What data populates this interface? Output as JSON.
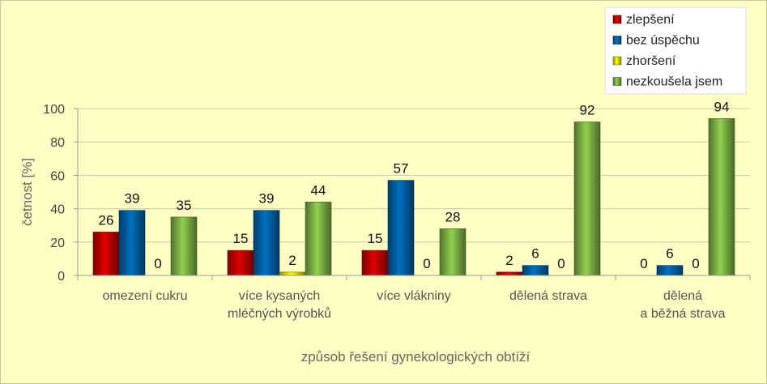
{
  "chart_data": {
    "type": "bar",
    "categories": [
      [
        "omezení cukru"
      ],
      [
        "více kysaných",
        "mléčných výrobků"
      ],
      [
        "více vlákniny"
      ],
      [
        "dělená strava"
      ],
      [
        "dělená",
        "a běžná strava"
      ]
    ],
    "series": [
      {
        "name": "zlepšení",
        "values": [
          26,
          15,
          15,
          2,
          0
        ],
        "color": "#e00000"
      },
      {
        "name": "bez úspěchu",
        "values": [
          39,
          39,
          57,
          6,
          6
        ],
        "color": "#0070c0"
      },
      {
        "name": "zhoršení",
        "values": [
          0,
          2,
          0,
          0,
          0
        ],
        "color": "#ffff00"
      },
      {
        "name": "nezkoušela jsem",
        "values": [
          35,
          44,
          28,
          92,
          94
        ],
        "color": "#92d050"
      }
    ],
    "xlabel": "způsob řešení gynekologických obtíží",
    "ylabel": "četnost [%]",
    "ylim": [
      0,
      100
    ],
    "yticks": [
      0,
      20,
      40,
      60,
      80,
      100
    ],
    "grid": true,
    "legend": "top-right"
  }
}
